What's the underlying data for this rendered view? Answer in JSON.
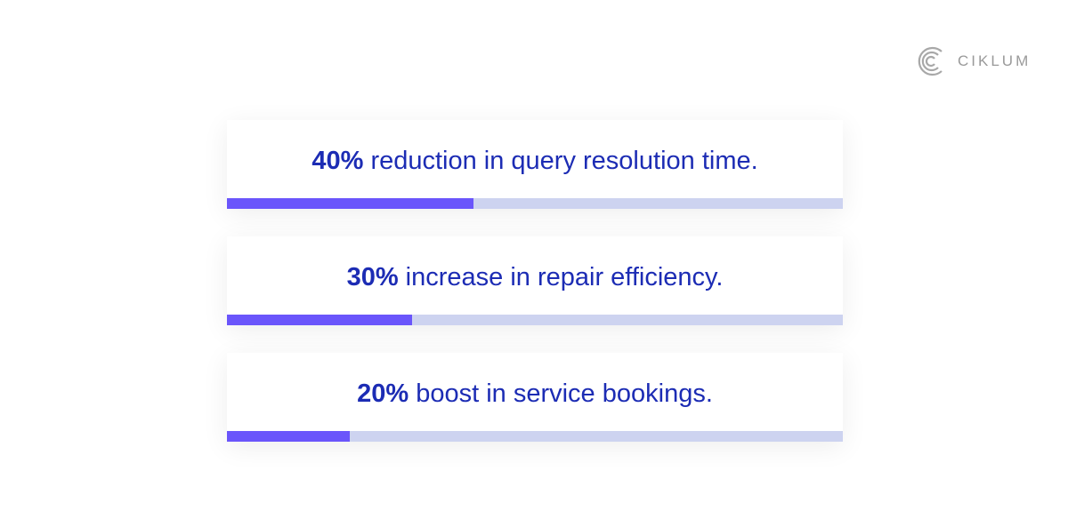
{
  "logo": {
    "text": "CIKLUM"
  },
  "chart_data": {
    "type": "progress",
    "categories": [
      "reduction in query resolution time.",
      "increase in repair efficiency.",
      "boost in service bookings."
    ],
    "values": [
      40,
      30,
      20
    ],
    "value_labels": [
      "40%",
      "30%",
      "20%"
    ],
    "xlim": [
      0,
      100
    ],
    "color": "#6a55fb",
    "track_color": "#cdd3f0",
    "text_color": "#1c2cb4"
  }
}
